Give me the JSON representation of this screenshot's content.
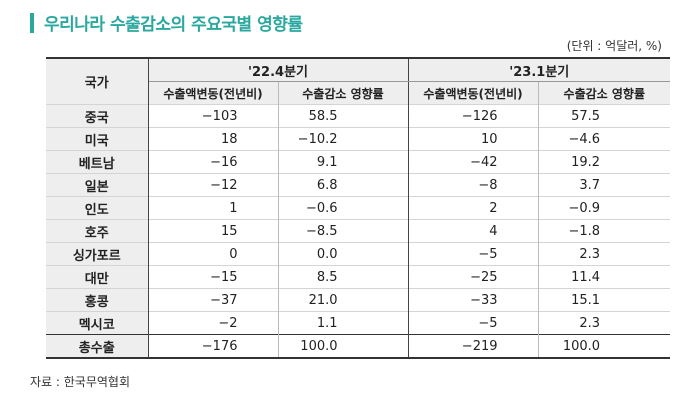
{
  "title": "우리나라 수출감소의 주요국별 영향률",
  "unit": "(단위 : 억달러, %)",
  "header": {
    "country": "국가",
    "period1": "'22.4분기",
    "period2": "'23.1분기",
    "col_change": "수출액변동(전년비)",
    "col_impact": "수출감소 영향률"
  },
  "rows": [
    {
      "country": "중국",
      "p1_change": "−103",
      "p1_impact": "58.5",
      "p2_change": "−126",
      "p2_impact": "57.5"
    },
    {
      "country": "미국",
      "p1_change": "18",
      "p1_impact": "−10.2",
      "p2_change": "10",
      "p2_impact": "−4.6"
    },
    {
      "country": "베트남",
      "p1_change": "−16",
      "p1_impact": "9.1",
      "p2_change": "−42",
      "p2_impact": "19.2"
    },
    {
      "country": "일본",
      "p1_change": "−12",
      "p1_impact": "6.8",
      "p2_change": "−8",
      "p2_impact": "3.7"
    },
    {
      "country": "인도",
      "p1_change": "1",
      "p1_impact": "−0.6",
      "p2_change": "2",
      "p2_impact": "−0.9"
    },
    {
      "country": "호주",
      "p1_change": "15",
      "p1_impact": "−8.5",
      "p2_change": "4",
      "p2_impact": "−1.8"
    },
    {
      "country": "싱가포르",
      "p1_change": "0",
      "p1_impact": "0.0",
      "p2_change": "−5",
      "p2_impact": "2.3"
    },
    {
      "country": "대만",
      "p1_change": "−15",
      "p1_impact": "8.5",
      "p2_change": "−25",
      "p2_impact": "11.4"
    },
    {
      "country": "홍콩",
      "p1_change": "−37",
      "p1_impact": "21.0",
      "p2_change": "−33",
      "p2_impact": "15.1"
    },
    {
      "country": "멕시코",
      "p1_change": "−2",
      "p1_impact": "1.1",
      "p2_change": "−5",
      "p2_impact": "2.3"
    }
  ],
  "total": {
    "country": "총수출",
    "p1_change": "−176",
    "p1_impact": "100.0",
    "p2_change": "−219",
    "p2_impact": "100.0"
  },
  "source": "자료 : 한국무역협회",
  "colors": {
    "accent": "#2aa8a0",
    "header_bg": "#eeeeee"
  }
}
